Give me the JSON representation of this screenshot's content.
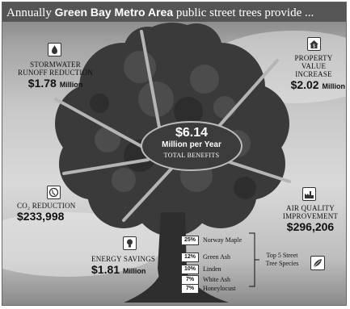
{
  "header": {
    "prefix": "Annually ",
    "bold": "Green Bay Metro Area",
    "suffix": " public street trees provide ..."
  },
  "center": {
    "value": "$6.14",
    "unit": "Million per Year",
    "label": "TOTAL BENEFITS"
  },
  "benefits": {
    "stormwater": {
      "label": "Stormwater Runoff Reduction",
      "value": "$1.78",
      "unit": "Million",
      "icon": "water-drop-icon"
    },
    "property": {
      "label": "Property Value Increase",
      "value": "$2.02",
      "unit": "Million",
      "icon": "house-dollar-icon"
    },
    "co2": {
      "label": "CO₂ Reduction",
      "value": "$233,998",
      "icon": "globe-icon"
    },
    "air": {
      "label": "Air Quality Improvement",
      "value": "$296,206",
      "icon": "factory-icon"
    },
    "energy": {
      "label": "Energy Savings",
      "value": "$1.81",
      "unit": "Million",
      "icon": "light-bulb-icon"
    }
  },
  "species": {
    "items": [
      {
        "pct": "25%",
        "name": "Norway Maple"
      },
      {
        "pct": "12%",
        "name": "Green Ash"
      },
      {
        "pct": "10%",
        "name": "Linden"
      },
      {
        "pct": "7%",
        "name": "White Ash"
      },
      {
        "pct": "7%",
        "name": "Honeylocust"
      }
    ],
    "title": "Top 5 Street Tree Species",
    "icon": "leaves-icon"
  },
  "colors": {
    "header_bg": "#555555",
    "canopy": "#3a3a3a",
    "trunk": "#2e2e2e",
    "center_oval": "#3c3c3c"
  }
}
